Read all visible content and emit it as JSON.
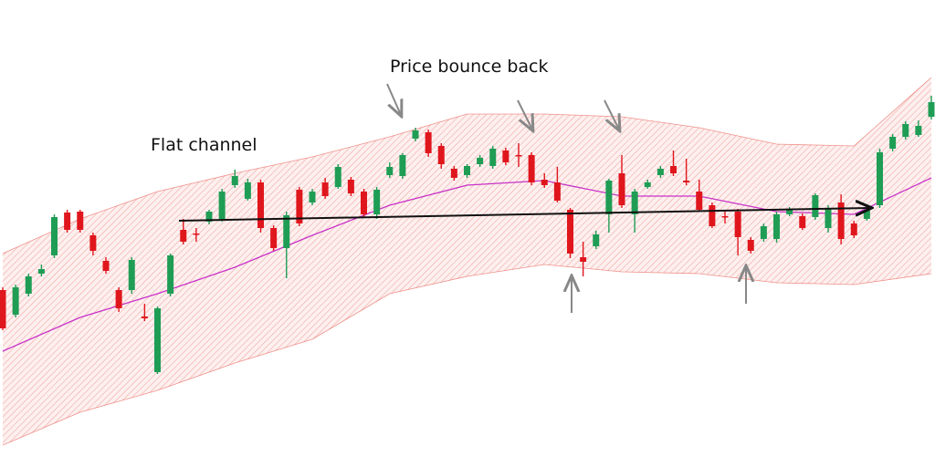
{
  "chart_data": {
    "type": "candlestick",
    "annotations": [
      "Price bounce back",
      "Flat channel"
    ],
    "ylim": [
      0,
      512
    ],
    "up_color": "#1f9d55",
    "down_color": "#e0161d",
    "open": [
      194,
      167,
      190,
      212,
      232,
      279,
      280,
      254,
      226,
      194,
      194,
      165,
      104,
      190,
      260,
      256,
      269,
      272,
      309,
      294,
      312,
      262,
      240,
      304,
      290,
      312,
      307,
      315,
      302,
      277,
      320,
      319,
      360,
      367,
      352,
      327,
      320,
      332,
      330,
      347,
      342,
      342,
      315,
      312,
      282,
      230,
      242,
      277,
      322,
      277,
      307,
      320,
      330,
      314,
      302,
      287,
      275,
      280,
      249,
      250,
      250,
      277,
      275,
      274,
      262,
      290,
      267,
      272,
      287,
      349,
      362,
      364,
      384
    ],
    "high": [
      197,
      200,
      212,
      222,
      277,
      282,
      282,
      257,
      230,
      197,
      230,
      179,
      176,
      234,
      272,
      262,
      282,
      305,
      326,
      316,
      315,
      265,
      280,
      307,
      305,
      317,
      332,
      318,
      305,
      307,
      334,
      344,
      372,
      370,
      355,
      330,
      332,
      342,
      352,
      350,
      355,
      345,
      322,
      329,
      284,
      247,
      259,
      316,
      342,
      305,
      315,
      330,
      347,
      338,
      315,
      290,
      280,
      283,
      252,
      267,
      280,
      285,
      278,
      300,
      287,
      299,
      270,
      285,
      349,
      365,
      379,
      380,
      407
    ],
    "low": [
      150,
      164,
      187,
      209,
      229,
      257,
      257,
      232,
      212,
      170,
      190,
      160,
      102,
      187,
      244,
      247,
      266,
      269,
      306,
      292,
      257,
      237,
      207,
      264,
      287,
      294,
      305,
      297,
      274,
      272,
      317,
      316,
      357,
      340,
      327,
      314,
      317,
      329,
      327,
      331,
      329,
      309,
      306,
      290,
      229,
      209,
      239,
      257,
      284,
      257,
      305,
      317,
      319,
      309,
      280,
      262,
      267,
      232,
      234,
      247,
      246,
      275,
      260,
      271,
      257,
      244,
      251,
      270,
      284,
      346,
      359,
      362,
      381
    ],
    "close": [
      152,
      197,
      209,
      217,
      274,
      260,
      260,
      237,
      215,
      174,
      227,
      163,
      174,
      232,
      247,
      255,
      280,
      302,
      319,
      312,
      262,
      240,
      276,
      267,
      302,
      297,
      329,
      300,
      277,
      304,
      329,
      342,
      369,
      344,
      332,
      317,
      330,
      339,
      349,
      334,
      341,
      312,
      309,
      292,
      234,
      225,
      255,
      314,
      287,
      302,
      312,
      327,
      322,
      312,
      282,
      264,
      274,
      252,
      237,
      264,
      277,
      282,
      262,
      298,
      284,
      250,
      254,
      282,
      345,
      362,
      376,
      374,
      400
    ],
    "envelope": {
      "x": [
        0,
        6,
        12,
        18,
        24,
        30,
        36,
        42,
        48,
        54,
        60,
        66,
        72
      ],
      "color": "#e8685f",
      "middle_color": "#c832c8",
      "upper": [
        234,
        272,
        302,
        322,
        340,
        362,
        387,
        387,
        384,
        372,
        354,
        352,
        427
      ],
      "middle": [
        127,
        164,
        190,
        219,
        254,
        287,
        309,
        314,
        297,
        297,
        280,
        277,
        317
      ],
      "lower": [
        24,
        60,
        84,
        114,
        140,
        190,
        209,
        222,
        214,
        212,
        202,
        200,
        212
      ]
    }
  }
}
